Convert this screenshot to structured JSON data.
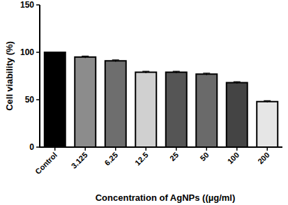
{
  "chart_data": {
    "type": "bar",
    "x_label": "Concentration of AgNPs ((µg/ml)",
    "y_label": "Cell viability (%)",
    "categories": [
      "Control",
      "3.125",
      "6.25",
      "12.5",
      "25",
      "50",
      "100",
      "200"
    ],
    "values": [
      100,
      95,
      91,
      79,
      79,
      77,
      68,
      48
    ],
    "errors": [
      0,
      1,
      1,
      1,
      1,
      1,
      1,
      1
    ],
    "colors": [
      "#000000",
      "#8c8c8c",
      "#6e6e6e",
      "#d0d0d0",
      "#555555",
      "#6a6a6a",
      "#444444",
      "#e6e6e6"
    ],
    "ylim": [
      0,
      150
    ],
    "yticks": [
      0,
      50,
      100,
      150
    ],
    "grid": false
  }
}
